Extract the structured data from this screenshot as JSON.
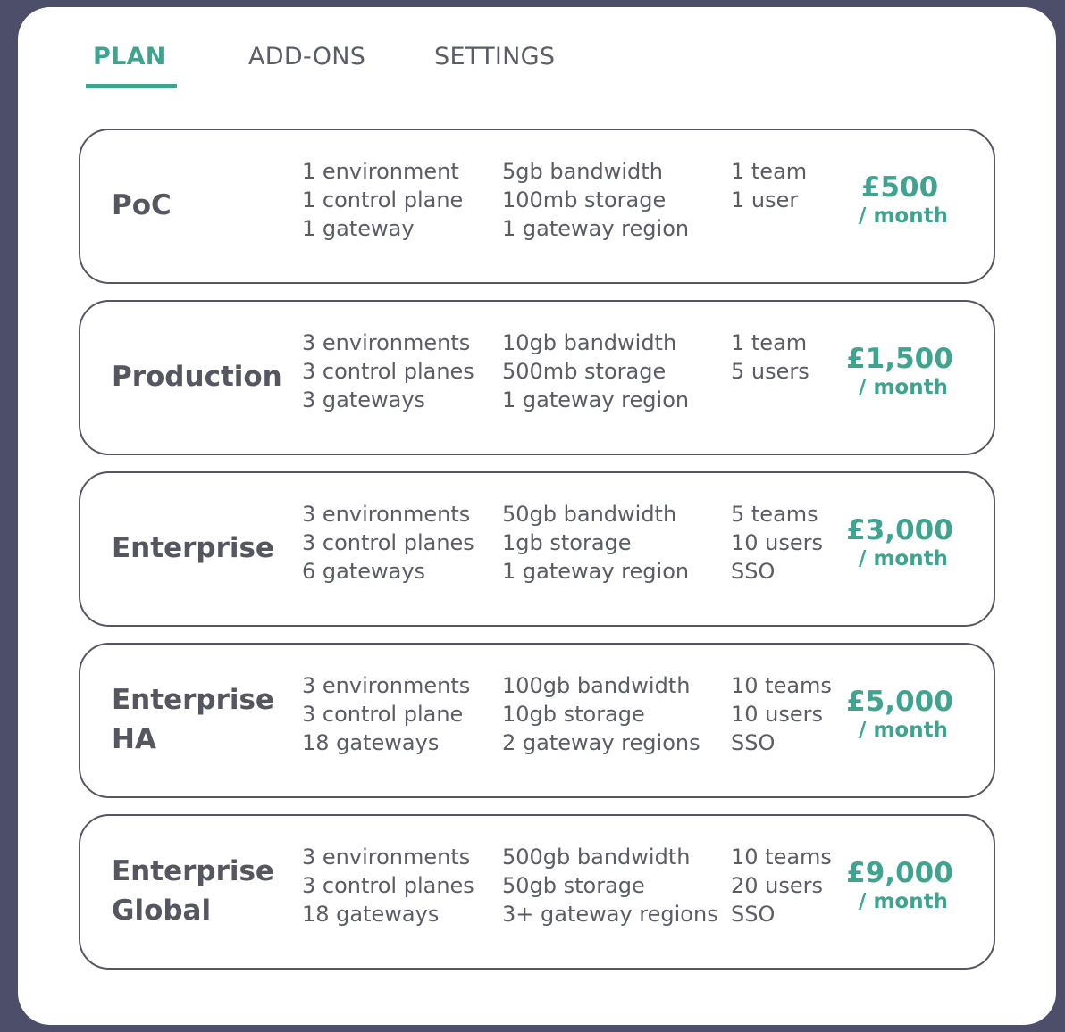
{
  "tabs": [
    {
      "label": "PLAN",
      "active": true
    },
    {
      "label": "ADD-ONS",
      "active": false
    },
    {
      "label": "SETTINGS",
      "active": false
    }
  ],
  "colors": {
    "accent": "#3fa48f",
    "text": "#55565f",
    "background": "#4c4e6a",
    "panel": "#ffffff"
  },
  "plans": [
    {
      "name": "PoC",
      "col1": [
        "1 environment",
        "1 control plane",
        "1 gateway"
      ],
      "col2": [
        "5gb bandwidth",
        "100mb storage",
        "1 gateway region"
      ],
      "col3": [
        "1 team",
        "1 user"
      ],
      "price": "£500",
      "period": "/ month"
    },
    {
      "name": "Production",
      "col1": [
        "3 environments",
        "3 control planes",
        "3 gateways"
      ],
      "col2": [
        "10gb bandwidth",
        "500mb storage",
        "1 gateway region"
      ],
      "col3": [
        "1 team",
        "5 users"
      ],
      "price": "£1,500",
      "period": "/ month"
    },
    {
      "name": "Enterprise",
      "col1": [
        "3 environments",
        "3 control planes",
        "6 gateways"
      ],
      "col2": [
        "50gb bandwidth",
        "1gb storage",
        "1 gateway region"
      ],
      "col3": [
        "5 teams",
        "10 users",
        "SSO"
      ],
      "price": "£3,000",
      "period": "/ month"
    },
    {
      "name": "Enterprise HA",
      "col1": [
        "3 environments",
        "3 control plane",
        "18 gateways"
      ],
      "col2": [
        "100gb bandwidth",
        "10gb storage",
        "2 gateway regions"
      ],
      "col3": [
        "10 teams",
        "10 users",
        "SSO"
      ],
      "price": "£5,000",
      "period": "/ month"
    },
    {
      "name": "Enterprise Global",
      "col1": [
        "3 environments",
        "3 control planes",
        "18 gateways"
      ],
      "col2": [
        "500gb bandwidth",
        "50gb storage",
        "3+ gateway regions"
      ],
      "col3": [
        "10 teams",
        "20 users",
        "SSO"
      ],
      "price": "£9,000",
      "period": "/ month"
    }
  ]
}
